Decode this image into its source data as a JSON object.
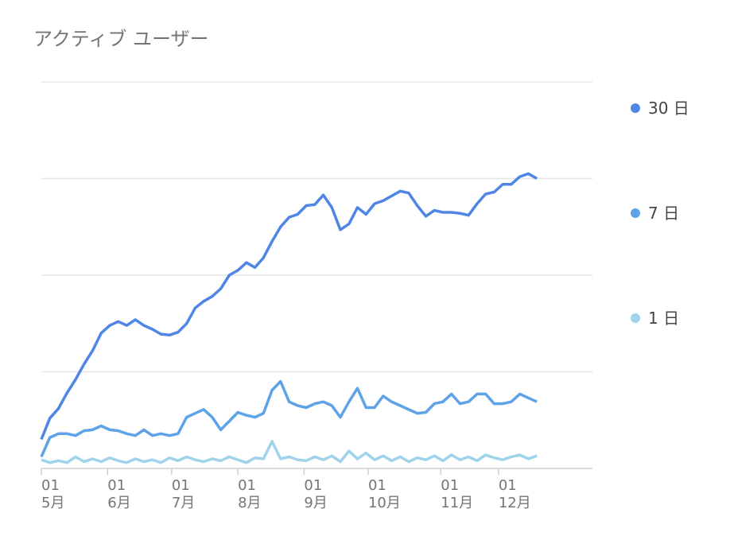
{
  "chart_data": {
    "type": "line",
    "title": "アクティブ ユーザー",
    "x": [
      0,
      4,
      8,
      12,
      16,
      20,
      24,
      28,
      32,
      36,
      40,
      44,
      48,
      52,
      56,
      60,
      64,
      68,
      72,
      76,
      80,
      84,
      88,
      92,
      96,
      100,
      104,
      108,
      112,
      116,
      120,
      124,
      128,
      132,
      136,
      140,
      144,
      148,
      152,
      156,
      160,
      164,
      168,
      172,
      176,
      180,
      184,
      188,
      192,
      196,
      200,
      204,
      208,
      212,
      216,
      220,
      224,
      228,
      232
    ],
    "xlim": [
      0,
      258
    ],
    "xticks": [
      {
        "value": 0,
        "label": "01\n5月"
      },
      {
        "value": 31,
        "label": "01\n6月"
      },
      {
        "value": 61,
        "label": "01\n7月"
      },
      {
        "value": 92,
        "label": "01\n8月"
      },
      {
        "value": 123,
        "label": "01\n9月"
      },
      {
        "value": 153,
        "label": "01\n10月"
      },
      {
        "value": 187,
        "label": "01\n11月"
      },
      {
        "value": 214,
        "label": "01\n12月"
      }
    ],
    "ylim": [
      0,
      4
    ],
    "yticks": [
      0,
      1,
      2,
      3,
      4
    ],
    "grid": true,
    "series": [
      {
        "name": "30 日",
        "color": "#4f86e5",
        "values": [
          0.3,
          0.52,
          0.62,
          0.78,
          0.92,
          1.08,
          1.22,
          1.4,
          1.48,
          1.52,
          1.48,
          1.54,
          1.48,
          1.44,
          1.39,
          1.38,
          1.41,
          1.5,
          1.66,
          1.73,
          1.78,
          1.86,
          2.0,
          2.05,
          2.13,
          2.08,
          2.18,
          2.35,
          2.5,
          2.6,
          2.63,
          2.72,
          2.73,
          2.83,
          2.7,
          2.47,
          2.53,
          2.7,
          2.63,
          2.74,
          2.77,
          2.82,
          2.87,
          2.85,
          2.72,
          2.61,
          2.67,
          2.65,
          2.65,
          2.64,
          2.62,
          2.74,
          2.84,
          2.86,
          2.94,
          2.94,
          3.02,
          3.05,
          3.0
        ]
      },
      {
        "name": "7 日",
        "color": "#5ea2e8",
        "values": [
          0.12,
          0.32,
          0.36,
          0.36,
          0.34,
          0.39,
          0.4,
          0.44,
          0.4,
          0.39,
          0.36,
          0.34,
          0.4,
          0.34,
          0.36,
          0.34,
          0.36,
          0.53,
          0.57,
          0.61,
          0.53,
          0.4,
          0.49,
          0.58,
          0.55,
          0.53,
          0.57,
          0.81,
          0.9,
          0.69,
          0.65,
          0.63,
          0.67,
          0.69,
          0.65,
          0.53,
          0.69,
          0.83,
          0.63,
          0.63,
          0.75,
          0.69,
          0.65,
          0.61,
          0.57,
          0.58,
          0.67,
          0.69,
          0.77,
          0.67,
          0.69,
          0.77,
          0.77,
          0.67,
          0.67,
          0.69,
          0.77,
          0.73,
          0.69
        ]
      },
      {
        "name": "1 日",
        "color": "#9fd3ea",
        "values": [
          0.09,
          0.06,
          0.08,
          0.06,
          0.12,
          0.07,
          0.1,
          0.07,
          0.11,
          0.08,
          0.06,
          0.1,
          0.07,
          0.09,
          0.06,
          0.11,
          0.08,
          0.12,
          0.09,
          0.07,
          0.1,
          0.08,
          0.12,
          0.09,
          0.06,
          0.11,
          0.1,
          0.28,
          0.1,
          0.12,
          0.09,
          0.08,
          0.12,
          0.09,
          0.13,
          0.07,
          0.18,
          0.1,
          0.16,
          0.09,
          0.13,
          0.08,
          0.12,
          0.07,
          0.11,
          0.09,
          0.13,
          0.08,
          0.14,
          0.09,
          0.12,
          0.08,
          0.14,
          0.11,
          0.09,
          0.12,
          0.14,
          0.1,
          0.13
        ]
      }
    ]
  }
}
